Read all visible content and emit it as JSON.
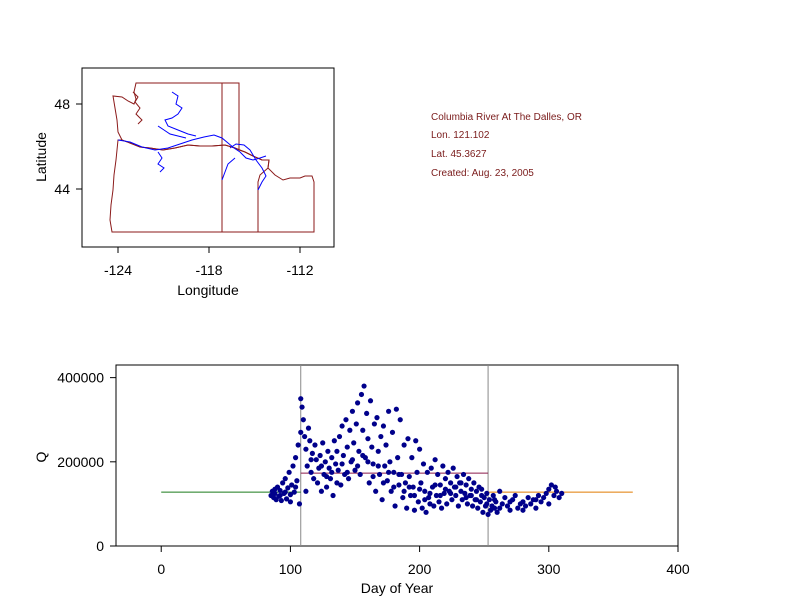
{
  "map": {
    "xlabel": "Longitude",
    "ylabel": "Latitude",
    "xticks": [
      "-124",
      "-118",
      "-112"
    ],
    "yticks": [
      "48",
      "44"
    ],
    "border_color": "#8b1a1a",
    "river_color": "#0000ff"
  },
  "info": {
    "station": "Columbia River At The Dalles, OR",
    "lon": "Lon. 121.102",
    "lat": "Lat. 45.3627",
    "created": "Created:   Aug. 23, 2005"
  },
  "chart_data": {
    "type": "scatter",
    "xlabel": "Day of Year",
    "ylabel": "Q",
    "xlim": [
      -35,
      400
    ],
    "ylim": [
      0,
      430000
    ],
    "xticks": [
      0,
      100,
      200,
      300,
      400
    ],
    "yticks": [
      0,
      200000,
      400000
    ],
    "xtick_labels": [
      "0",
      "100",
      "200",
      "300",
      "400"
    ],
    "ytick_labels": [
      "0",
      "200000",
      "400000"
    ],
    "point_color": "#00008b",
    "vertical_lines": [
      108,
      253
    ],
    "segments": [
      {
        "x": [
          0,
          108
        ],
        "y": [
          128000,
          128000
        ],
        "color": "#1a7a1a"
      },
      {
        "x": [
          108,
          253
        ],
        "y": [
          173000,
          173000
        ],
        "color": "#8b1a4a"
      },
      {
        "x": [
          253,
          365
        ],
        "y": [
          128000,
          128000
        ],
        "color": "#e07b00"
      }
    ],
    "points": [
      [
        85,
        120000
      ],
      [
        86,
        130000
      ],
      [
        87,
        115000
      ],
      [
        88,
        125000
      ],
      [
        89,
        110000
      ],
      [
        90,
        140000
      ],
      [
        91,
        118000
      ],
      [
        92,
        132000
      ],
      [
        93,
        108000
      ],
      [
        94,
        150000
      ],
      [
        95,
        125000
      ],
      [
        96,
        160000
      ],
      [
        97,
        112000
      ],
      [
        98,
        138000
      ],
      [
        99,
        175000
      ],
      [
        100,
        122000
      ],
      [
        101,
        145000
      ],
      [
        102,
        190000
      ],
      [
        103,
        128000
      ],
      [
        104,
        210000
      ],
      [
        105,
        155000
      ],
      [
        106,
        240000
      ],
      [
        107,
        100000
      ],
      [
        108,
        350000
      ],
      [
        108,
        270000
      ],
      [
        109,
        330000
      ],
      [
        110,
        300000
      ],
      [
        111,
        260000
      ],
      [
        112,
        230000
      ],
      [
        113,
        190000
      ],
      [
        114,
        280000
      ],
      [
        115,
        250000
      ],
      [
        116,
        175000
      ],
      [
        117,
        220000
      ],
      [
        118,
        160000
      ],
      [
        119,
        240000
      ],
      [
        120,
        205000
      ],
      [
        121,
        150000
      ],
      [
        122,
        185000
      ],
      [
        123,
        215000
      ],
      [
        124,
        130000
      ],
      [
        125,
        245000
      ],
      [
        126,
        170000
      ],
      [
        127,
        200000
      ],
      [
        128,
        140000
      ],
      [
        129,
        225000
      ],
      [
        130,
        185000
      ],
      [
        131,
        160000
      ],
      [
        132,
        210000
      ],
      [
        133,
        120000
      ],
      [
        134,
        250000
      ],
      [
        135,
        195000
      ],
      [
        136,
        225000
      ],
      [
        137,
        180000
      ],
      [
        138,
        260000
      ],
      [
        139,
        145000
      ],
      [
        140,
        285000
      ],
      [
        141,
        215000
      ],
      [
        142,
        170000
      ],
      [
        143,
        300000
      ],
      [
        144,
        235000
      ],
      [
        145,
        160000
      ],
      [
        146,
        275000
      ],
      [
        147,
        200000
      ],
      [
        148,
        320000
      ],
      [
        149,
        245000
      ],
      [
        150,
        180000
      ],
      [
        151,
        290000
      ],
      [
        152,
        340000
      ],
      [
        153,
        225000
      ],
      [
        154,
        170000
      ],
      [
        155,
        360000
      ],
      [
        156,
        275000
      ],
      [
        157,
        380000
      ],
      [
        158,
        210000
      ],
      [
        159,
        315000
      ],
      [
        160,
        255000
      ],
      [
        161,
        150000
      ],
      [
        162,
        345000
      ],
      [
        163,
        235000
      ],
      [
        164,
        195000
      ],
      [
        165,
        290000
      ],
      [
        166,
        130000
      ],
      [
        167,
        305000
      ],
      [
        168,
        225000
      ],
      [
        169,
        170000
      ],
      [
        170,
        260000
      ],
      [
        171,
        110000
      ],
      [
        172,
        285000
      ],
      [
        173,
        190000
      ],
      [
        174,
        240000
      ],
      [
        175,
        155000
      ],
      [
        176,
        320000
      ],
      [
        177,
        200000
      ],
      [
        178,
        130000
      ],
      [
        179,
        270000
      ],
      [
        180,
        175000
      ],
      [
        181,
        95000
      ],
      [
        182,
        325000
      ],
      [
        183,
        210000
      ],
      [
        184,
        145000
      ],
      [
        185,
        300000
      ],
      [
        186,
        170000
      ],
      [
        187,
        115000
      ],
      [
        188,
        240000
      ],
      [
        189,
        150000
      ],
      [
        190,
        90000
      ],
      [
        191,
        255000
      ],
      [
        192,
        165000
      ],
      [
        193,
        120000
      ],
      [
        194,
        210000
      ],
      [
        195,
        140000
      ],
      [
        196,
        85000
      ],
      [
        197,
        250000
      ],
      [
        198,
        175000
      ],
      [
        199,
        105000
      ],
      [
        200,
        230000
      ],
      [
        201,
        150000
      ],
      [
        202,
        90000
      ],
      [
        203,
        195000
      ],
      [
        204,
        130000
      ],
      [
        205,
        80000
      ],
      [
        206,
        175000
      ],
      [
        207,
        115000
      ],
      [
        208,
        100000
      ],
      [
        209,
        185000
      ],
      [
        210,
        140000
      ],
      [
        211,
        95000
      ],
      [
        212,
        205000
      ],
      [
        213,
        120000
      ],
      [
        214,
        170000
      ],
      [
        215,
        105000
      ],
      [
        216,
        145000
      ],
      [
        217,
        90000
      ],
      [
        218,
        190000
      ],
      [
        219,
        125000
      ],
      [
        220,
        160000
      ],
      [
        221,
        100000
      ],
      [
        222,
        175000
      ],
      [
        223,
        130000
      ],
      [
        224,
        150000
      ],
      [
        225,
        110000
      ],
      [
        226,
        185000
      ],
      [
        227,
        140000
      ],
      [
        228,
        120000
      ],
      [
        229,
        165000
      ],
      [
        230,
        95000
      ],
      [
        231,
        150000
      ],
      [
        232,
        130000
      ],
      [
        233,
        110000
      ],
      [
        234,
        170000
      ],
      [
        235,
        125000
      ],
      [
        236,
        145000
      ],
      [
        237,
        100000
      ],
      [
        238,
        160000
      ],
      [
        239,
        120000
      ],
      [
        240,
        135000
      ],
      [
        241,
        95000
      ],
      [
        242,
        150000
      ],
      [
        243,
        110000
      ],
      [
        244,
        130000
      ],
      [
        245,
        90000
      ],
      [
        246,
        140000
      ],
      [
        247,
        105000
      ],
      [
        248,
        120000
      ],
      [
        249,
        80000
      ],
      [
        250,
        115000
      ],
      [
        251,
        95000
      ],
      [
        252,
        100000
      ],
      [
        253,
        75000
      ],
      [
        254,
        110000
      ],
      [
        255,
        85000
      ],
      [
        256,
        95000
      ],
      [
        257,
        120000
      ],
      [
        258,
        90000
      ],
      [
        259,
        105000
      ],
      [
        260,
        80000
      ],
      [
        262,
        130000
      ],
      [
        264,
        100000
      ],
      [
        266,
        115000
      ],
      [
        268,
        95000
      ],
      [
        270,
        85000
      ],
      [
        272,
        110000
      ],
      [
        274,
        120000
      ],
      [
        276,
        90000
      ],
      [
        278,
        100000
      ],
      [
        280,
        105000
      ],
      [
        282,
        95000
      ],
      [
        284,
        115000
      ],
      [
        286,
        100000
      ],
      [
        288,
        110000
      ],
      [
        290,
        90000
      ],
      [
        292,
        120000
      ],
      [
        294,
        105000
      ],
      [
        296,
        115000
      ],
      [
        298,
        125000
      ],
      [
        300,
        135000
      ],
      [
        302,
        145000
      ],
      [
        304,
        120000
      ],
      [
        306,
        130000
      ],
      [
        308,
        115000
      ],
      [
        310,
        125000
      ],
      [
        88,
        135000
      ],
      [
        92,
        120000
      ],
      [
        96,
        128000
      ],
      [
        100,
        105000
      ],
      [
        104,
        140000
      ],
      [
        112,
        130000
      ],
      [
        116,
        205000
      ],
      [
        124,
        190000
      ],
      [
        128,
        165000
      ],
      [
        132,
        175000
      ],
      [
        136,
        150000
      ],
      [
        140,
        195000
      ],
      [
        144,
        175000
      ],
      [
        148,
        205000
      ],
      [
        152,
        190000
      ],
      [
        156,
        215000
      ],
      [
        160,
        200000
      ],
      [
        164,
        165000
      ],
      [
        168,
        190000
      ],
      [
        172,
        150000
      ],
      [
        176,
        175000
      ],
      [
        180,
        140000
      ],
      [
        184,
        170000
      ],
      [
        188,
        130000
      ],
      [
        192,
        140000
      ],
      [
        196,
        120000
      ],
      [
        200,
        135000
      ],
      [
        204,
        110000
      ],
      [
        208,
        125000
      ],
      [
        212,
        145000
      ],
      [
        216,
        120000
      ],
      [
        220,
        135000
      ],
      [
        224,
        125000
      ],
      [
        228,
        140000
      ],
      [
        232,
        150000
      ],
      [
        236,
        115000
      ],
      [
        240,
        120000
      ],
      [
        244,
        110000
      ],
      [
        248,
        135000
      ],
      [
        252,
        125000
      ],
      [
        258,
        110000
      ],
      [
        262,
        90000
      ],
      [
        270,
        105000
      ],
      [
        280,
        85000
      ],
      [
        290,
        110000
      ],
      [
        300,
        100000
      ],
      [
        305,
        140000
      ]
    ]
  }
}
